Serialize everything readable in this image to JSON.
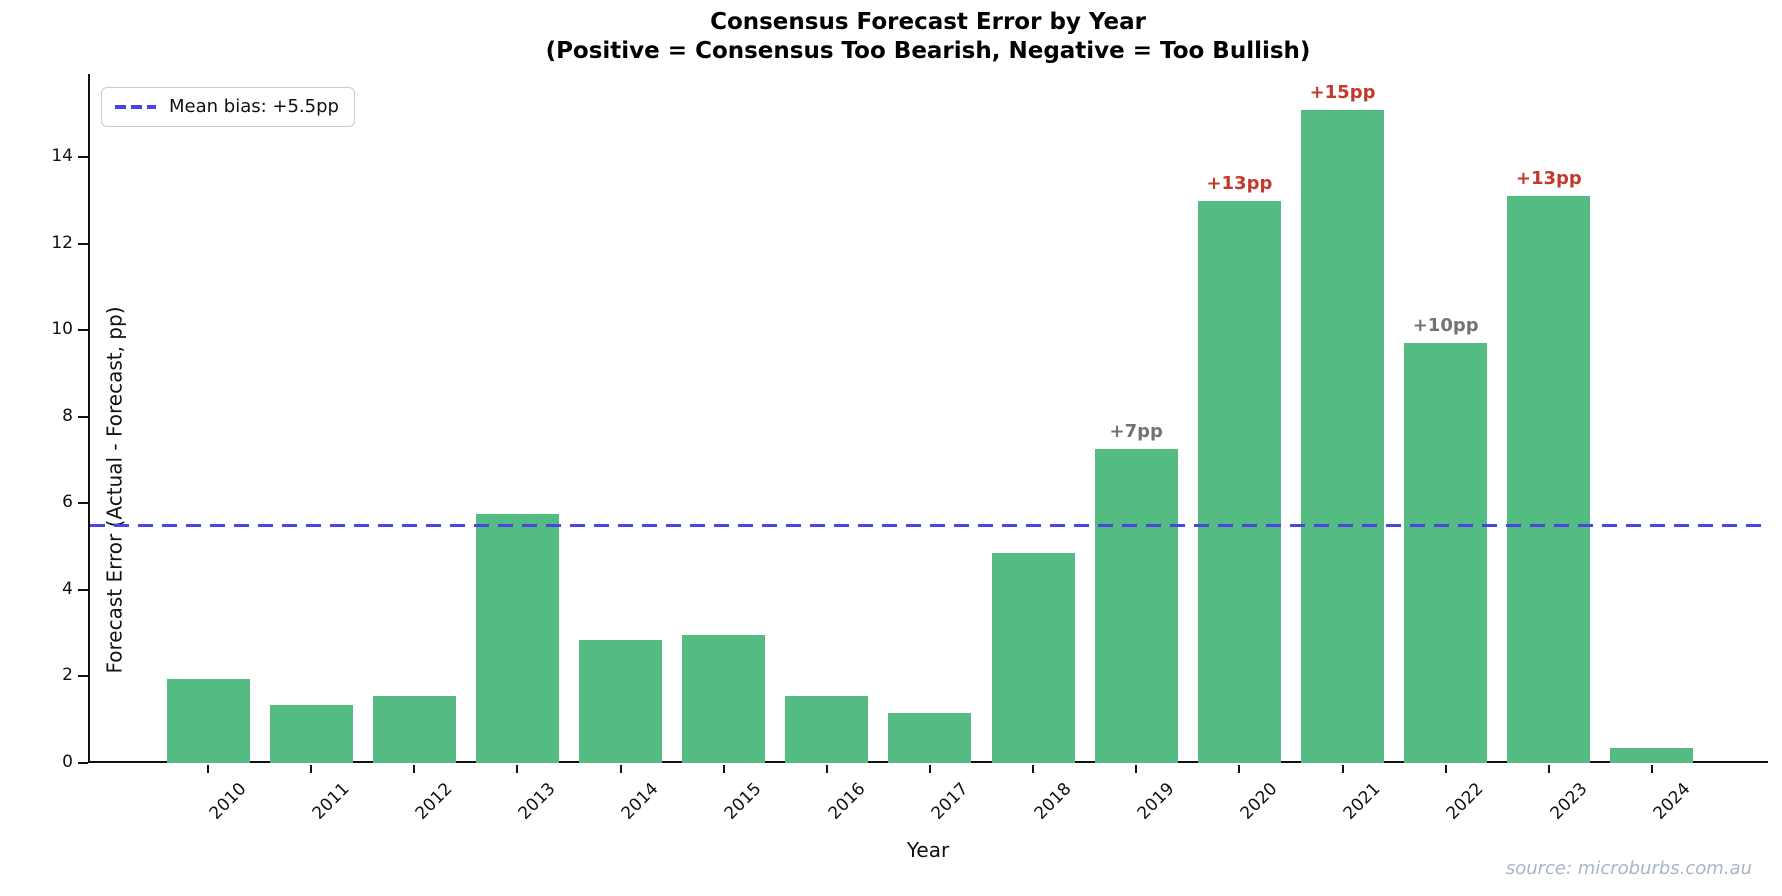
{
  "source": "source: microburbs.com.au",
  "chart_data": {
    "type": "bar",
    "title": "Consensus Forecast Error by Year",
    "subtitle": "(Positive = Consensus Too Bearish, Negative = Too Bullish)",
    "xlabel": "Year",
    "ylabel": "Forecast Error (Actual - Forecast, pp)",
    "categories": [
      "2010",
      "2011",
      "2012",
      "2013",
      "2014",
      "2015",
      "2016",
      "2017",
      "2018",
      "2019",
      "2020",
      "2021",
      "2022",
      "2023",
      "2024"
    ],
    "values": [
      1.95,
      1.35,
      1.55,
      5.75,
      2.85,
      2.95,
      1.55,
      1.15,
      4.85,
      7.25,
      13.0,
      15.1,
      9.7,
      13.1,
      0.35
    ],
    "bar_labels": [
      null,
      null,
      null,
      null,
      null,
      null,
      null,
      null,
      null,
      {
        "text": "+7pp",
        "color": "#737373"
      },
      {
        "text": "+13pp",
        "color": "#c23a2b"
      },
      {
        "text": "+15pp",
        "color": "#c23a2b"
      },
      {
        "text": "+10pp",
        "color": "#737373"
      },
      {
        "text": "+13pp",
        "color": "#c23a2b"
      },
      null
    ],
    "mean_line": {
      "value": 5.5,
      "label": "Mean bias: +5.5pp",
      "color": "#4a46e2"
    },
    "yticks": [
      0,
      2,
      4,
      6,
      8,
      10,
      12,
      14
    ],
    "ylim": [
      0,
      15.93
    ],
    "bar_color": "#54bc82",
    "grid": false,
    "legend_position": "upper left"
  }
}
